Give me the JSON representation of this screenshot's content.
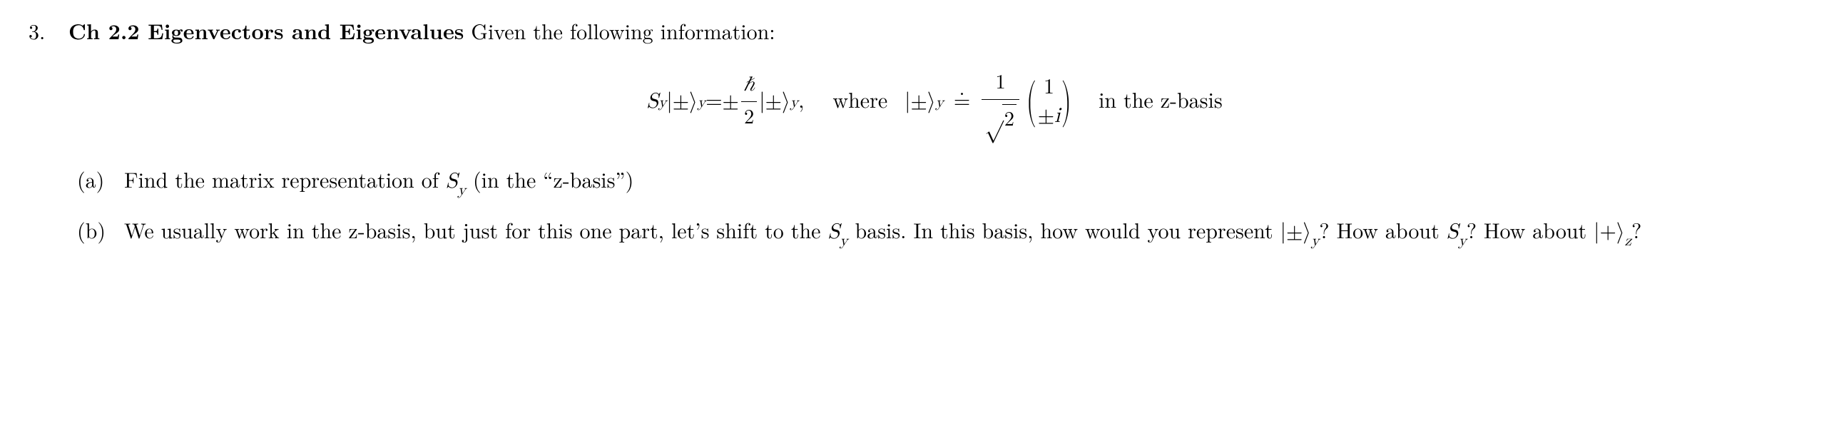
{
  "problem": {
    "number": "3.",
    "title_bold": "Ch 2.2 Eigenvectors and Eigenvalues",
    "title_rest": " Given the following information:"
  },
  "equation": {
    "lhs_operator": "S",
    "lhs_sub": "y",
    "ket_bar": "|",
    "ket_pm": "±",
    "rangle": "⟩",
    "ket_sub": "y",
    "equals": " = ",
    "pm": "±",
    "hbar": "ℏ",
    "two": "2",
    "comma": ",",
    "where_text": "where",
    "doteq": "=",
    "one": "1",
    "sqrt2": "2",
    "vec_top": "1",
    "vec_bot_pm": "±",
    "vec_bot_i": "i",
    "tail_text": "in the z-basis"
  },
  "parts": {
    "a": {
      "label": "(a)",
      "text_1": "Find the matrix representation of ",
      "sy_S": "S",
      "sy_y": "y",
      "text_2": " (in the “z-basis”)"
    },
    "b": {
      "label": "(b)",
      "text_1": "We usually work in the z-basis, but just for this one part, let’s shift to the ",
      "sy_S": "S",
      "sy_y": "y",
      "text_2": " basis. In this basis, how would you represent ",
      "ket1_bar": "|",
      "ket1_pm": "±",
      "ket1_rangle": "⟩",
      "ket1_sub": "y",
      "text_3": "? How about ",
      "sy2_S": "S",
      "sy2_y": "y",
      "text_4": "? How about ",
      "ket2_bar": "|",
      "ket2_plus": "+",
      "ket2_rangle": "⟩",
      "ket2_sub": "z",
      "text_5": "?"
    }
  }
}
